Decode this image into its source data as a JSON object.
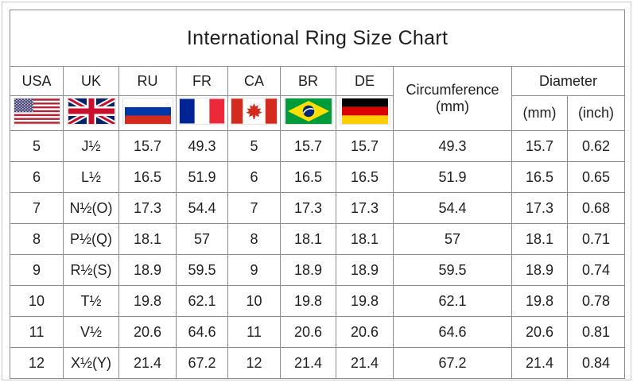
{
  "title": "International Ring Size Chart",
  "header": {
    "country_columns": [
      {
        "label": "USA",
        "icon": "usa-flag-icon"
      },
      {
        "label": "UK",
        "icon": "uk-flag-icon"
      },
      {
        "label": "RU",
        "icon": "russia-flag-icon"
      },
      {
        "label": "FR",
        "icon": "france-flag-icon"
      },
      {
        "label": "CA",
        "icon": "canada-flag-icon"
      },
      {
        "label": "BR",
        "icon": "brazil-flag-icon"
      },
      {
        "label": "DE",
        "icon": "germany-flag-icon"
      }
    ],
    "circumference": {
      "line1": "Circumference",
      "line2": "(mm)"
    },
    "diameter": {
      "label": "Diameter",
      "units": [
        "(mm)",
        "(inch)"
      ]
    },
    "column_keys": [
      "usa-size",
      "uk-size",
      "ru-size",
      "fr-size",
      "ca-size",
      "br-size",
      "de-size",
      "circumference-mm",
      "diameter-mm",
      "diameter-inch"
    ]
  },
  "chart_data": {
    "type": "table",
    "title": "International Ring Size Chart",
    "columns": [
      "USA",
      "UK",
      "RU",
      "FR",
      "CA",
      "BR",
      "DE",
      "Circumference (mm)",
      "Diameter (mm)",
      "Diameter (inch)"
    ],
    "rows": [
      [
        "5",
        "J½",
        "15.7",
        "49.3",
        "5",
        "15.7",
        "15.7",
        "49.3",
        "15.7",
        "0.62"
      ],
      [
        "6",
        "L½",
        "16.5",
        "51.9",
        "6",
        "16.5",
        "16.5",
        "51.9",
        "16.5",
        "0.65"
      ],
      [
        "7",
        "N½(O)",
        "17.3",
        "54.4",
        "7",
        "17.3",
        "17.3",
        "54.4",
        "17.3",
        "0.68"
      ],
      [
        "8",
        "P½(Q)",
        "18.1",
        "57",
        "8",
        "18.1",
        "18.1",
        "57",
        "18.1",
        "0.71"
      ],
      [
        "9",
        "R½(S)",
        "18.9",
        "59.5",
        "9",
        "18.9",
        "18.9",
        "59.5",
        "18.9",
        "0.74"
      ],
      [
        "10",
        "T½",
        "19.8",
        "62.1",
        "10",
        "19.8",
        "19.8",
        "62.1",
        "19.8",
        "0.78"
      ],
      [
        "11",
        "V½",
        "20.6",
        "64.6",
        "11",
        "20.6",
        "20.6",
        "64.6",
        "20.6",
        "0.81"
      ],
      [
        "12",
        "X½(Y)",
        "21.4",
        "67.2",
        "12",
        "21.4",
        "21.4",
        "67.2",
        "21.4",
        "0.84"
      ]
    ]
  }
}
